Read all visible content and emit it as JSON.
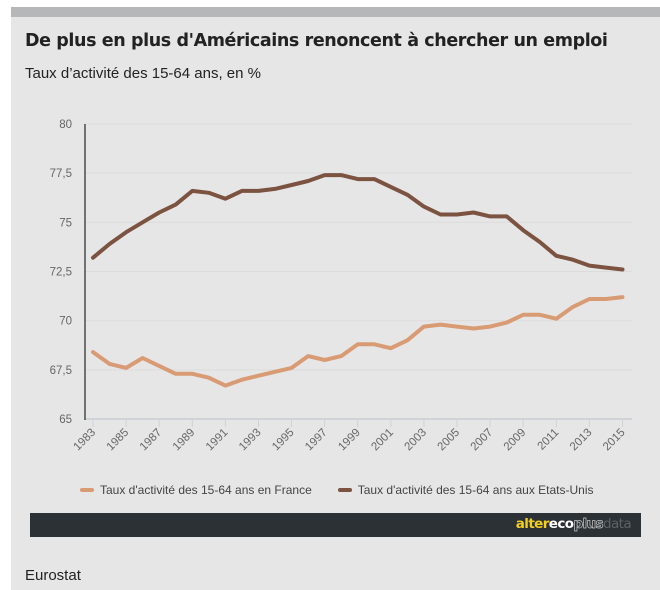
{
  "header": {
    "title": "De plus en plus d'Américains renoncent à chercher un emploi",
    "subtitle": "Taux d’activité des 15-64 ans, en %"
  },
  "colors": {
    "france": "#d99b74",
    "usa": "#7b5340",
    "band": "#b5b7b8",
    "background": "#e6e6e6",
    "brand_bar": "#2b3135",
    "logo_yellow": "#f2cf1f"
  },
  "chart_data": {
    "type": "line",
    "title": "De plus en plus d'Américains renoncent à chercher un emploi",
    "subtitle": "Taux d’activité des 15-64 ans, en %",
    "xlabel": "",
    "ylabel": "",
    "x": [
      1983,
      1984,
      1985,
      1986,
      1987,
      1988,
      1989,
      1990,
      1991,
      1992,
      1993,
      1994,
      1995,
      1996,
      1997,
      1998,
      1999,
      2000,
      2001,
      2002,
      2003,
      2004,
      2005,
      2006,
      2007,
      2008,
      2009,
      2010,
      2011,
      2012,
      2013,
      2014,
      2015
    ],
    "xlim": [
      1983,
      2015
    ],
    "xticks": [
      "1983",
      "1985",
      "1987",
      "1989",
      "1991",
      "1993",
      "1995",
      "1997",
      "1999",
      "2001",
      "2003",
      "2005",
      "2007",
      "2009",
      "2011",
      "2013",
      "2015"
    ],
    "ylim": [
      65,
      80
    ],
    "yticks": [
      {
        "value": 65,
        "label": "65"
      },
      {
        "value": 67.5,
        "label": "67,5"
      },
      {
        "value": 70,
        "label": "70"
      },
      {
        "value": 72.5,
        "label": "72,5"
      },
      {
        "value": 75,
        "label": "75"
      },
      {
        "value": 77.5,
        "label": "77,5"
      },
      {
        "value": 80,
        "label": "80"
      }
    ],
    "grid": true,
    "legend_position": "bottom",
    "series": [
      {
        "name": "Taux d'activité des 15-64 ans en France",
        "color": "#d99b74",
        "values": [
          68.4,
          67.8,
          67.6,
          68.1,
          67.7,
          67.3,
          67.3,
          67.1,
          66.7,
          67.0,
          67.2,
          67.4,
          67.6,
          68.2,
          68.0,
          68.2,
          68.8,
          68.8,
          68.6,
          69.0,
          69.7,
          69.8,
          69.7,
          69.6,
          69.7,
          69.9,
          70.3,
          70.3,
          70.1,
          70.7,
          71.1,
          71.1,
          71.2
        ]
      },
      {
        "name": "Taux d'activité des 15-64 ans aux Etats-Unis",
        "color": "#7b5340",
        "values": [
          73.2,
          73.9,
          74.5,
          75.0,
          75.5,
          75.9,
          76.6,
          76.5,
          76.2,
          76.6,
          76.6,
          76.7,
          76.9,
          77.1,
          77.4,
          77.4,
          77.2,
          77.2,
          76.8,
          76.4,
          75.8,
          75.4,
          75.4,
          75.5,
          75.3,
          75.3,
          74.6,
          74.0,
          73.3,
          73.1,
          72.8,
          72.7,
          72.6
        ]
      }
    ]
  },
  "legend": {
    "items": [
      {
        "label": "Taux d'activité des 15-64 ans en France"
      },
      {
        "label": "Taux d'activité des 15-64 ans aux Etats-Unis"
      }
    ]
  },
  "branding": {
    "logo_parts": [
      "alter",
      "eco",
      "plus",
      "data"
    ]
  },
  "footer": {
    "source": "Eurostat"
  }
}
